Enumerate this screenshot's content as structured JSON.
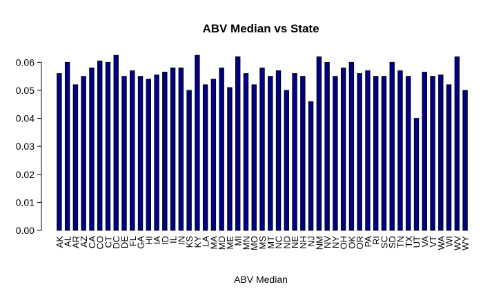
{
  "chart_data": {
    "type": "bar",
    "title": "ABV Median vs State",
    "xlabel": "ABV Median",
    "ylabel": "",
    "ylim": [
      0,
      0.065
    ],
    "yticks": [
      "0.00",
      "0.01",
      "0.02",
      "0.03",
      "0.04",
      "0.05",
      "0.06"
    ],
    "grid": false,
    "legend": "none",
    "bar_color": "#000080",
    "bar_border": "#000000",
    "categories": [
      "AK",
      "AL",
      "AR",
      "AZ",
      "CA",
      "CO",
      "CT",
      "DC",
      "DE",
      "FL",
      "GA",
      "HI",
      "IA",
      "ID",
      "IL",
      "IN",
      "KS",
      "KY",
      "LA",
      "MA",
      "MD",
      "ME",
      "MI",
      "MN",
      "MO",
      "MS",
      "MT",
      "NC",
      "ND",
      "NE",
      "NH",
      "NJ",
      "NM",
      "NV",
      "NY",
      "OH",
      "OK",
      "OR",
      "PA",
      "RI",
      "SC",
      "SD",
      "TN",
      "TX",
      "UT",
      "VA",
      "VT",
      "WA",
      "WI",
      "WV",
      "WY"
    ],
    "values": [
      0.056,
      0.06,
      0.052,
      0.055,
      0.058,
      0.0605,
      0.06,
      0.0625,
      0.055,
      0.057,
      0.055,
      0.054,
      0.0555,
      0.0565,
      0.058,
      0.058,
      0.05,
      0.0625,
      0.052,
      0.054,
      0.058,
      0.051,
      0.062,
      0.056,
      0.052,
      0.058,
      0.055,
      0.057,
      0.05,
      0.056,
      0.055,
      0.046,
      0.062,
      0.06,
      0.055,
      0.058,
      0.06,
      0.056,
      0.057,
      0.055,
      0.055,
      0.06,
      0.057,
      0.055,
      0.04,
      0.0565,
      0.055,
      0.0555,
      0.052,
      0.062,
      0.05
    ]
  }
}
